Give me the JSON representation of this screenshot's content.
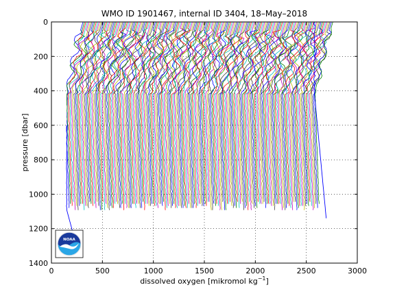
{
  "chart_data": {
    "type": "line",
    "title": "WMO ID 1901467, internal ID 3404, 18–May–2018",
    "xlabel_text": "dissolved oxygen [mikromol kg",
    "xlabel_exponent": "−1",
    "xlabel_close": "]",
    "ylabel": "pressure [dbar]",
    "xlim": [
      0,
      3000
    ],
    "ylim": [
      0,
      1400
    ],
    "y_reversed": true,
    "grid": true,
    "grid_style": "dotted",
    "x_ticks": [
      "0",
      "500",
      "1000",
      "1500",
      "2000",
      "2500",
      "3000"
    ],
    "y_ticks": [
      "0",
      "200",
      "400",
      "600",
      "800",
      "1000",
      "1200",
      "1400"
    ],
    "x_tick_values": [
      0,
      500,
      1000,
      1500,
      2000,
      2500,
      3000
    ],
    "y_tick_values": [
      0,
      200,
      400,
      600,
      800,
      1000,
      1200,
      1400
    ],
    "series_description": "waterfall of sequential oxygen profiles, each offset along x",
    "profile_count": 170,
    "first_profile_surface_x": 190,
    "profile_offset_step": 14.5,
    "profile_max_pressure_range": [
      1050,
      1100
    ],
    "last_profile_deep_x": 2700,
    "last_profile_max_pressure": 1150,
    "series_colors": [
      "#0000ff",
      "#008000",
      "#ff0000",
      "#00bfbf",
      "#bf00bf",
      "#bfbf00",
      "#404040"
    ]
  },
  "logo": {
    "text": "NOAA",
    "colors": {
      "sky": "#1a3a9c",
      "sea": "#2aa6e6",
      "bird": "#ffffff"
    }
  }
}
